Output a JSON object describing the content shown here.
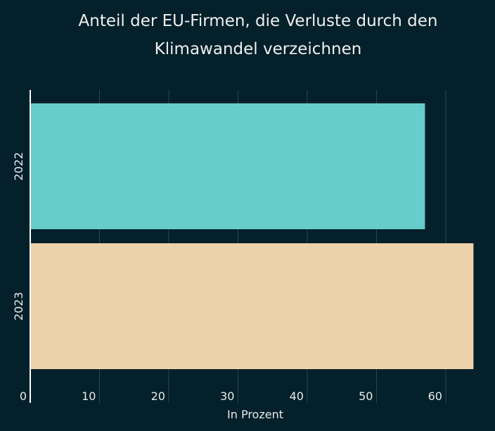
{
  "chart_data": {
    "type": "bar",
    "orientation": "horizontal",
    "title_line1": "Anteil der EU-Firmen, die Verluste durch den",
    "title_line2": "Klimawandel verzeichnen",
    "categories": [
      "2022",
      "2023"
    ],
    "values": [
      57,
      64
    ],
    "colors": [
      "#66cdcb",
      "#ecd2aa"
    ],
    "xlabel": "In Prozent",
    "ylabel": "",
    "xlim": [
      0,
      66.5
    ],
    "xticks": [
      0,
      10,
      20,
      30,
      40,
      50,
      60
    ],
    "grid": true
  }
}
